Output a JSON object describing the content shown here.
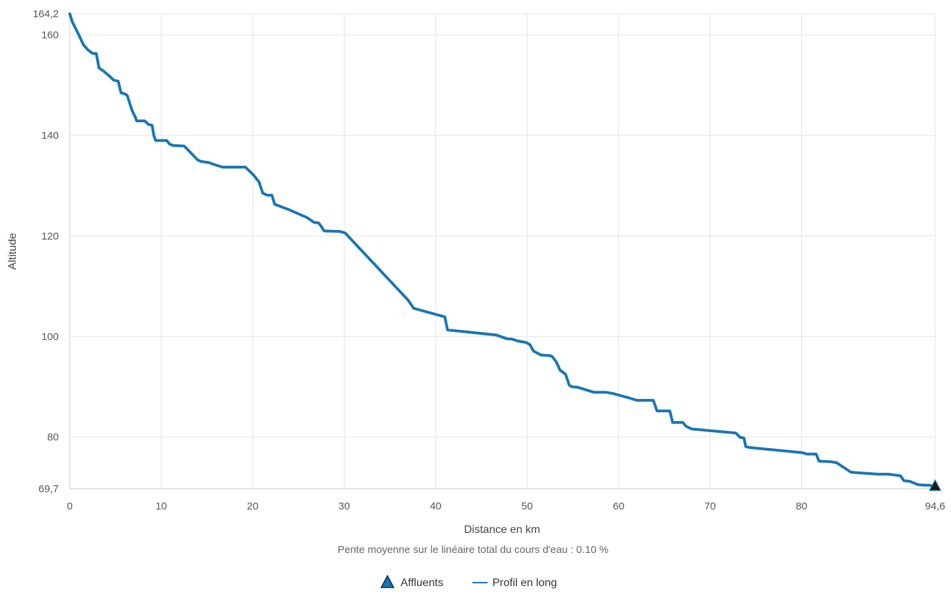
{
  "chart_data": {
    "type": "line",
    "xlabel": "Distance en km",
    "ylabel": "Altitude",
    "subtitle": "Pente moyenne sur le linéaire total du cours d'eau : 0.10 %",
    "xlim": [
      0,
      94.6
    ],
    "ylim": [
      69.7,
      164.2
    ],
    "x_ticks": [
      0,
      10,
      20,
      30,
      40,
      50,
      60,
      70,
      80,
      94.6
    ],
    "x_tick_labels": [
      "0",
      "10",
      "20",
      "30",
      "40",
      "50",
      "60",
      "70",
      "80",
      "94,6"
    ],
    "y_ticks": [
      69.7,
      80,
      100,
      120,
      140,
      160,
      164.2
    ],
    "y_tick_labels": [
      "69,7",
      "80",
      "100",
      "120",
      "140",
      "160",
      "164,2"
    ],
    "grid": true,
    "legend_position": "bottom-center",
    "legend": [
      {
        "name": "Affluents",
        "symbol": "triangle",
        "color": "#1776b6"
      },
      {
        "name": "Profil en long",
        "symbol": "line",
        "color": "#1776b6"
      }
    ],
    "series": [
      {
        "name": "Profil en long",
        "color": "#1776b6",
        "points": [
          [
            0.0,
            164.2
          ],
          [
            0.3,
            162.5
          ],
          [
            1.0,
            160.0
          ],
          [
            1.5,
            158.0
          ],
          [
            2.0,
            157.0
          ],
          [
            2.5,
            156.3
          ],
          [
            2.9,
            156.3
          ],
          [
            3.2,
            153.4
          ],
          [
            3.7,
            152.8
          ],
          [
            4.4,
            151.7
          ],
          [
            4.8,
            151.0
          ],
          [
            5.3,
            150.8
          ],
          [
            5.4,
            150.0
          ],
          [
            5.6,
            148.5
          ],
          [
            6.1,
            148.2
          ],
          [
            6.3,
            147.9
          ],
          [
            6.8,
            145.0
          ],
          [
            7.2,
            143.5
          ],
          [
            7.3,
            142.9
          ],
          [
            8.2,
            142.9
          ],
          [
            8.6,
            142.2
          ],
          [
            9.0,
            142.0
          ],
          [
            9.2,
            139.9
          ],
          [
            9.4,
            139.0
          ],
          [
            10.6,
            139.0
          ],
          [
            10.9,
            138.3
          ],
          [
            11.3,
            138.0
          ],
          [
            12.5,
            137.9
          ],
          [
            13.2,
            136.6
          ],
          [
            14.0,
            135.1
          ],
          [
            14.4,
            134.8
          ],
          [
            15.2,
            134.6
          ],
          [
            15.8,
            134.2
          ],
          [
            16.7,
            133.7
          ],
          [
            19.2,
            133.7
          ],
          [
            20.1,
            132.1
          ],
          [
            20.7,
            130.7
          ],
          [
            21.1,
            128.5
          ],
          [
            21.6,
            128.1
          ],
          [
            22.1,
            128.1
          ],
          [
            22.4,
            126.3
          ],
          [
            24.0,
            125.2
          ],
          [
            25.9,
            123.7
          ],
          [
            26.7,
            122.7
          ],
          [
            27.2,
            122.6
          ],
          [
            27.5,
            121.9
          ],
          [
            27.8,
            121.0
          ],
          [
            29.5,
            120.9
          ],
          [
            30.1,
            120.6
          ],
          [
            37.0,
            107.2
          ],
          [
            37.6,
            105.6
          ],
          [
            41.0,
            103.9
          ],
          [
            41.3,
            101.3
          ],
          [
            46.6,
            100.3
          ],
          [
            47.7,
            99.6
          ],
          [
            48.0,
            99.5
          ],
          [
            48.3,
            99.5
          ],
          [
            49.0,
            99.1
          ],
          [
            49.9,
            98.8
          ],
          [
            50.3,
            98.4
          ],
          [
            50.7,
            97.1
          ],
          [
            51.5,
            96.3
          ],
          [
            52.5,
            96.2
          ],
          [
            52.8,
            95.9
          ],
          [
            53.2,
            94.9
          ],
          [
            53.6,
            93.3
          ],
          [
            54.2,
            92.5
          ],
          [
            54.6,
            90.3
          ],
          [
            54.9,
            90.0
          ],
          [
            55.5,
            89.9
          ],
          [
            57.3,
            88.9
          ],
          [
            58.6,
            88.9
          ],
          [
            59.5,
            88.6
          ],
          [
            61.3,
            87.7
          ],
          [
            62.0,
            87.3
          ],
          [
            63.8,
            87.3
          ],
          [
            64.2,
            85.2
          ],
          [
            65.6,
            85.2
          ],
          [
            65.9,
            82.9
          ],
          [
            67.0,
            82.9
          ],
          [
            67.4,
            82.1
          ],
          [
            68.0,
            81.6
          ],
          [
            72.8,
            80.8
          ],
          [
            73.3,
            79.9
          ],
          [
            73.7,
            79.8
          ],
          [
            73.9,
            78.1
          ],
          [
            74.3,
            77.9
          ],
          [
            80.0,
            76.9
          ],
          [
            80.6,
            76.6
          ],
          [
            81.6,
            76.6
          ],
          [
            81.9,
            75.2
          ],
          [
            83.1,
            75.1
          ],
          [
            83.8,
            74.9
          ],
          [
            85.4,
            73.0
          ],
          [
            86.1,
            72.9
          ],
          [
            88.4,
            72.6
          ],
          [
            89.5,
            72.6
          ],
          [
            90.3,
            72.4
          ],
          [
            90.8,
            72.3
          ],
          [
            91.2,
            71.3
          ],
          [
            91.8,
            71.2
          ],
          [
            92.6,
            70.6
          ],
          [
            92.8,
            70.5
          ],
          [
            93.5,
            70.4
          ],
          [
            94.0,
            70.4
          ],
          [
            94.6,
            70.0
          ]
        ]
      },
      {
        "name": "Affluents",
        "color": "#1776b6",
        "points": [
          [
            94.6,
            70.2
          ]
        ]
      }
    ]
  }
}
